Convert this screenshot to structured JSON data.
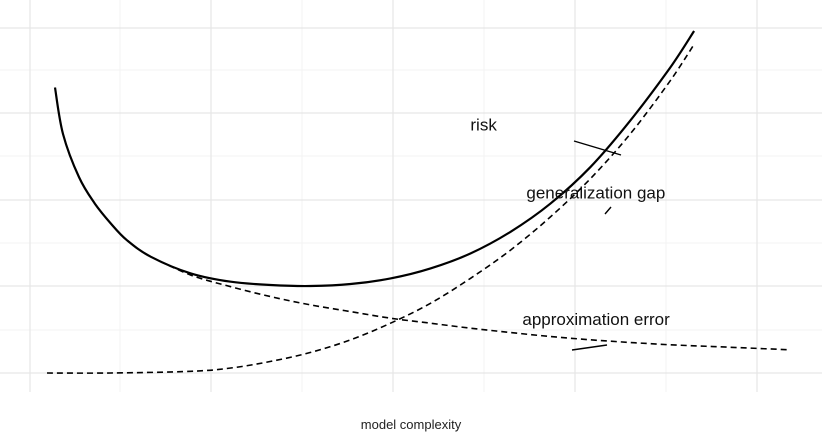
{
  "chart_data": {
    "type": "line",
    "title": "",
    "xlabel": "model complexity",
    "ylabel": "",
    "xlim": [
      0,
      10
    ],
    "ylim": [
      0,
      10
    ],
    "grid": true,
    "legend": "none",
    "series": [
      {
        "name": "risk",
        "style": "solid",
        "x": [
          0.3,
          0.4,
          0.6,
          0.8,
          1.0,
          1.2,
          1.5,
          2.0,
          2.5,
          3.0,
          3.5,
          4.0,
          4.5,
          5.0,
          5.5,
          6.0,
          6.5,
          7.0,
          7.5,
          8.0,
          8.3
        ],
        "y": [
          8.6,
          7.2,
          5.9,
          5.1,
          4.5,
          4.0,
          3.5,
          3.0,
          2.75,
          2.65,
          2.62,
          2.68,
          2.85,
          3.15,
          3.6,
          4.25,
          5.1,
          6.2,
          7.6,
          9.2,
          10.3
        ]
      },
      {
        "name": "generalization gap",
        "style": "dashed",
        "x": [
          0.2,
          1.0,
          2.0,
          2.5,
          3.0,
          3.5,
          4.0,
          4.5,
          5.0,
          5.5,
          6.0,
          6.5,
          7.0,
          7.5,
          8.0,
          8.3
        ],
        "y": [
          0.0,
          0.0,
          0.05,
          0.15,
          0.35,
          0.62,
          1.0,
          1.5,
          2.1,
          2.85,
          3.7,
          4.7,
          5.85,
          7.2,
          8.8,
          9.9
        ]
      },
      {
        "name": "approximation error",
        "style": "dashed",
        "x": [
          1.5,
          2.0,
          2.5,
          3.0,
          3.5,
          4.0,
          4.5,
          5.0,
          5.5,
          6.0,
          6.5,
          7.0,
          7.5,
          8.0,
          8.5,
          9.0,
          9.5
        ],
        "y": [
          3.5,
          2.95,
          2.6,
          2.3,
          2.05,
          1.85,
          1.65,
          1.5,
          1.35,
          1.22,
          1.1,
          1.0,
          0.92,
          0.85,
          0.8,
          0.75,
          0.7
        ]
      }
    ],
    "annotations": [
      {
        "text": "risk",
        "x": 5.5,
        "y": 7.3
      },
      {
        "text": "generalization gap",
        "x": 6.2,
        "y": 5.25
      },
      {
        "text": "approximation error",
        "x": 6.15,
        "y": 1.45
      }
    ]
  }
}
